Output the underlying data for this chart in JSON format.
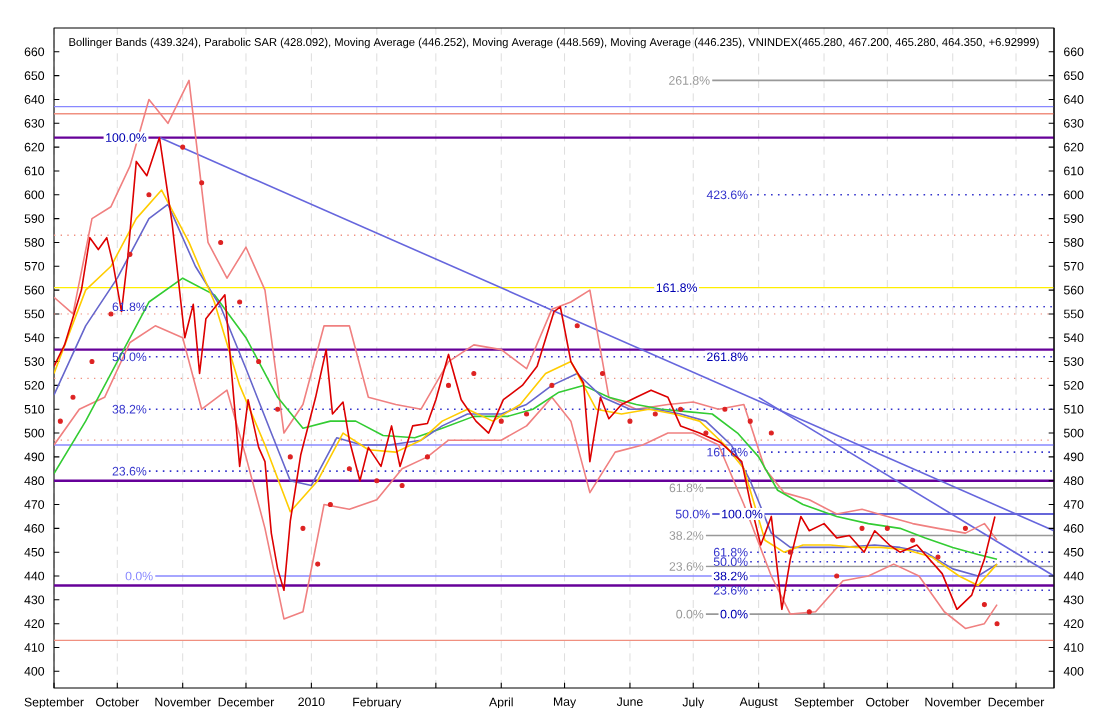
{
  "chart_data": {
    "type": "line",
    "title": "Bollinger Bands (439.324), Parabolic SAR (428.092), Moving Average (446.252), Moving Average (448.569), Moving Average (446.235), VNINDEX(465.280, 467.200, 465.280, 464.350, +6.92999)",
    "xlim": [
      "2009-09-01",
      "2010-12-19"
    ],
    "ylim": [
      393,
      670
    ],
    "y2lim": [
      393,
      670
    ],
    "xticks": [
      {
        "value": "2009-09-01",
        "label": "September"
      },
      {
        "value": "2009-10-01",
        "label": "October"
      },
      {
        "value": "2009-11-01",
        "label": "November"
      },
      {
        "value": "2009-12-01",
        "label": "December"
      },
      {
        "value": "2010-01-01",
        "label": "2010"
      },
      {
        "value": "2010-02-01",
        "label": "February"
      },
      {
        "value": "2010-03-01",
        "label": null
      },
      {
        "value": "2010-04-01",
        "label": "April"
      },
      {
        "value": "2010-05-01",
        "label": "May"
      },
      {
        "value": "2010-06-01",
        "label": "June"
      },
      {
        "value": "2010-07-01",
        "label": "July"
      },
      {
        "value": "2010-08-01",
        "label": "August"
      },
      {
        "value": "2010-09-01",
        "label": "September"
      },
      {
        "value": "2010-10-01",
        "label": "October"
      },
      {
        "value": "2010-11-01",
        "label": "November"
      },
      {
        "value": "2010-12-01",
        "label": "December"
      }
    ],
    "yticks": [
      400,
      410,
      420,
      430,
      440,
      450,
      460,
      470,
      480,
      490,
      500,
      510,
      520,
      530,
      540,
      550,
      560,
      570,
      580,
      590,
      600,
      610,
      620,
      630,
      640,
      650,
      660
    ],
    "y2ticks": [
      400,
      410,
      420,
      430,
      440,
      450,
      460,
      470,
      480,
      490,
      500,
      510,
      520,
      530,
      540,
      550,
      560,
      570,
      580,
      590,
      600,
      610,
      620,
      630,
      640,
      650,
      660
    ],
    "grid": "x",
    "ref_lines": [
      {
        "axis": "y",
        "value": 637,
        "color": "#8888ff",
        "line_style": "solid"
      },
      {
        "axis": "y",
        "value": 634,
        "color": "#f09080",
        "line_style": "solid"
      },
      {
        "axis": "y",
        "value": 624,
        "color": "#660099",
        "line_style": "solid"
      },
      {
        "axis": "y",
        "value": 583,
        "color": "#f09080",
        "line_style": "dotted"
      },
      {
        "axis": "y",
        "value": 561,
        "color": "#ffee00",
        "line_style": "solid"
      },
      {
        "axis": "y",
        "value": 550,
        "color": "#f09080",
        "line_style": "dotted"
      },
      {
        "axis": "y",
        "value": 535,
        "color": "#660099",
        "line_style": "solid"
      },
      {
        "axis": "y",
        "value": 523,
        "color": "#f09080",
        "line_style": "dotted"
      },
      {
        "axis": "y",
        "value": 497,
        "color": "#f09080",
        "line_style": "dotted"
      },
      {
        "axis": "y",
        "value": 495,
        "color": "#8888ff",
        "line_style": "solid"
      },
      {
        "axis": "y",
        "value": 480,
        "color": "#660099",
        "line_style": "solid"
      },
      {
        "axis": "y",
        "value": 436,
        "color": "#660099",
        "line_style": "solid"
      },
      {
        "axis": "y",
        "value": 413,
        "color": "#f09080",
        "line_style": "solid"
      }
    ],
    "annotations": [
      {
        "text": "100.0%",
        "x": "2009-10-16",
        "y": 624
      },
      {
        "text": "161.8%",
        "x": "2010-07-04",
        "y": 561
      },
      {
        "text": "261.8%",
        "x": "2010-07-28",
        "y": 532
      },
      {
        "text": "100.0%",
        "x": "2010-08-04",
        "y": 466
      },
      {
        "text": "38.2%",
        "x": "2010-07-28",
        "y": 440
      },
      {
        "text": "0.0%",
        "x": "2010-07-28",
        "y": 424
      }
    ],
    "series": [
      {
        "name": "61.8%",
        "color": "#3333cc",
        "line_style": "dotted",
        "x": [
          "2009-10-16",
          "2010-12-19"
        ],
        "values": [
          553,
          553
        ]
      },
      {
        "name": "50.0%",
        "color": "#3333cc",
        "line_style": "dotted",
        "x": [
          "2009-10-16",
          "2010-12-19"
        ],
        "values": [
          532,
          532
        ]
      },
      {
        "name": "38.2%",
        "color": "#3333cc",
        "line_style": "dotted",
        "x": [
          "2009-10-16",
          "2010-12-19"
        ],
        "values": [
          510,
          510
        ]
      },
      {
        "name": "23.6%",
        "color": "#3333cc",
        "line_style": "dotted",
        "x": [
          "2009-10-16",
          "2010-12-19"
        ],
        "values": [
          484,
          484
        ]
      },
      {
        "name": "0.0%",
        "color": "#8888ff",
        "line_style": "solid",
        "x": [
          "2009-10-19",
          "2010-12-19"
        ],
        "values": [
          440,
          440
        ]
      },
      {
        "name": "423.6%",
        "color": "#3333cc",
        "line_style": "dotted",
        "x": [
          "2010-07-28",
          "2010-12-19"
        ],
        "values": [
          600,
          600
        ]
      },
      {
        "name": "161.8%",
        "color": "#3333cc",
        "line_style": "dotted",
        "x": [
          "2010-07-28",
          "2010-12-19"
        ],
        "values": [
          492,
          492
        ]
      },
      {
        "name": "50.0%",
        "color": "#3333cc",
        "line_style": "solid",
        "x": [
          "2010-07-10",
          "2010-12-19"
        ],
        "values": [
          466,
          466
        ]
      },
      {
        "name": "61.8%",
        "color": "#3333cc",
        "line_style": "dotted",
        "x": [
          "2010-07-28",
          "2010-12-19"
        ],
        "values": [
          450,
          450
        ]
      },
      {
        "name": "50.0%",
        "color": "#3333cc",
        "line_style": "dotted",
        "x": [
          "2010-07-28",
          "2010-12-19"
        ],
        "values": [
          446,
          446
        ]
      },
      {
        "name": "23.6%",
        "color": "#3333cc",
        "line_style": "dotted",
        "x": [
          "2010-07-28",
          "2010-12-19"
        ],
        "values": [
          434,
          434
        ]
      },
      {
        "name": "261.8%",
        "color": "#999999",
        "line_style": "solid",
        "x": [
          "2010-07-10",
          "2010-12-19"
        ],
        "values": [
          648,
          648
        ]
      },
      {
        "name": "61.8%",
        "color": "#999999",
        "line_style": "solid",
        "x": [
          "2010-07-07",
          "2010-12-19"
        ],
        "values": [
          477,
          477
        ]
      },
      {
        "name": "38.2%",
        "color": "#999999",
        "line_style": "solid",
        "x": [
          "2010-07-07",
          "2010-12-19"
        ],
        "values": [
          457,
          457
        ]
      },
      {
        "name": "23.6%",
        "color": "#999999",
        "line_style": "solid",
        "x": [
          "2010-07-07",
          "2010-12-19"
        ],
        "values": [
          444,
          444
        ]
      },
      {
        "name": "0.0%",
        "color": "#999999",
        "line_style": "solid",
        "x": [
          "2010-07-07",
          "2010-12-19"
        ],
        "values": [
          424,
          424
        ]
      },
      {
        "color": "#6666dd",
        "line_style": "solid",
        "x": [
          "2009-10-21",
          "2010-12-19"
        ],
        "values": [
          624,
          459
        ]
      },
      {
        "color": "#6666dd",
        "line_style": "solid",
        "x": [
          "2010-08-01",
          "2010-12-19"
        ],
        "values": [
          515,
          440
        ]
      },
      {
        "color": "#f08080",
        "line_style": "solid",
        "x": [
          "2009-09-01",
          "2009-09-10",
          "2009-09-19",
          "2009-09-28",
          "2009-10-07",
          "2009-10-16",
          "2009-10-25",
          "2009-11-04",
          "2009-11-13",
          "2009-11-22",
          "2009-12-01",
          "2009-12-10",
          "2009-12-19",
          "2009-12-28",
          "2010-01-07",
          "2010-01-19",
          "2010-01-28",
          "2010-02-10",
          "2010-02-22",
          "2010-03-07",
          "2010-03-19",
          "2010-04-01",
          "2010-04-13",
          "2010-04-25",
          "2010-05-04",
          "2010-05-13",
          "2010-05-22",
          "2010-06-04",
          "2010-06-19",
          "2010-07-01",
          "2010-07-13",
          "2010-07-25",
          "2010-08-04",
          "2010-08-13",
          "2010-08-25",
          "2010-09-07",
          "2010-09-19",
          "2010-10-01",
          "2010-10-13",
          "2010-10-25",
          "2010-11-07",
          "2010-11-16",
          "2010-11-22"
        ],
        "values": [
          557,
          550,
          590,
          595,
          612,
          640,
          630,
          648,
          580,
          565,
          578,
          560,
          500,
          512,
          545,
          545,
          515,
          512,
          510,
          530,
          537,
          535,
          527,
          552,
          555,
          560,
          515,
          510,
          512,
          513,
          510,
          512,
          485,
          475,
          472,
          466,
          468,
          465,
          462,
          460,
          458,
          462,
          455
        ]
      },
      {
        "color": "#f08080",
        "line_style": "solid",
        "x": [
          "2009-09-01",
          "2009-09-13",
          "2009-09-25",
          "2009-10-07",
          "2009-10-19",
          "2009-11-01",
          "2009-11-10",
          "2009-11-22",
          "2009-12-01",
          "2009-12-10",
          "2009-12-19",
          "2009-12-28",
          "2010-01-07",
          "2010-01-19",
          "2010-02-01",
          "2010-02-13",
          "2010-02-25",
          "2010-03-07",
          "2010-03-19",
          "2010-04-01",
          "2010-04-13",
          "2010-04-25",
          "2010-05-04",
          "2010-05-13",
          "2010-05-25",
          "2010-06-07",
          "2010-06-19",
          "2010-07-01",
          "2010-07-13",
          "2010-07-25",
          "2010-08-07",
          "2010-08-16",
          "2010-08-28",
          "2010-09-10",
          "2010-09-22",
          "2010-10-04",
          "2010-10-16",
          "2010-10-28",
          "2010-11-07",
          "2010-11-16",
          "2010-11-22"
        ],
        "values": [
          495,
          510,
          515,
          538,
          545,
          540,
          510,
          518,
          490,
          460,
          422,
          425,
          470,
          468,
          472,
          485,
          490,
          497,
          497,
          497,
          503,
          515,
          505,
          475,
          492,
          495,
          500,
          500,
          495,
          470,
          440,
          424,
          425,
          438,
          440,
          445,
          440,
          425,
          418,
          420,
          428
        ]
      },
      {
        "color": "#33cc33",
        "line_style": "solid",
        "x": [
          "2009-09-01",
          "2009-09-16",
          "2009-10-01",
          "2009-10-16",
          "2009-11-01",
          "2009-11-16",
          "2009-12-01",
          "2009-12-16",
          "2009-12-28",
          "2010-01-10",
          "2010-01-22",
          "2010-02-04",
          "2010-02-19",
          "2010-03-04",
          "2010-03-19",
          "2010-04-04",
          "2010-04-16",
          "2010-04-28",
          "2010-05-10",
          "2010-05-22",
          "2010-06-04",
          "2010-06-16",
          "2010-06-28",
          "2010-07-10",
          "2010-07-22",
          "2010-08-01",
          "2010-08-10",
          "2010-08-22",
          "2010-09-07",
          "2010-09-22",
          "2010-10-07",
          "2010-10-19",
          "2010-11-01",
          "2010-11-13",
          "2010-11-22"
        ],
        "values": [
          483,
          505,
          530,
          555,
          565,
          558,
          540,
          515,
          502,
          505,
          505,
          499,
          498,
          502,
          507,
          507,
          510,
          517,
          520,
          515,
          512,
          510,
          509,
          508,
          500,
          490,
          476,
          470,
          465,
          462,
          460,
          456,
          452,
          449,
          447
        ]
      },
      {
        "color": "#6666cc",
        "line_style": "solid",
        "x": [
          "2009-09-01",
          "2009-09-16",
          "2009-10-01",
          "2009-10-16",
          "2009-10-25",
          "2009-11-07",
          "2009-11-19",
          "2009-12-01",
          "2009-12-13",
          "2009-12-22",
          "2010-01-01",
          "2010-01-13",
          "2010-01-25",
          "2010-02-07",
          "2010-02-22",
          "2010-03-04",
          "2010-03-16",
          "2010-04-01",
          "2010-04-13",
          "2010-04-25",
          "2010-05-07",
          "2010-05-19",
          "2010-06-01",
          "2010-06-13",
          "2010-06-25",
          "2010-07-07",
          "2010-07-19",
          "2010-07-28",
          "2010-08-07",
          "2010-08-16",
          "2010-08-28",
          "2010-09-10",
          "2010-09-25",
          "2010-10-07",
          "2010-10-19",
          "2010-11-01",
          "2010-11-13",
          "2010-11-22"
        ],
        "values": [
          516,
          545,
          565,
          590,
          596,
          570,
          553,
          527,
          500,
          480,
          478,
          498,
          495,
          495,
          497,
          503,
          508,
          508,
          512,
          520,
          525,
          515,
          510,
          510,
          508,
          505,
          495,
          480,
          458,
          452,
          452,
          452,
          453,
          452,
          450,
          443,
          440,
          445
        ]
      },
      {
        "color": "#ffcc00",
        "line_style": "solid",
        "x": [
          "2009-09-01",
          "2009-09-16",
          "2009-09-28",
          "2009-10-10",
          "2009-10-22",
          "2009-11-04",
          "2009-11-16",
          "2009-11-28",
          "2009-12-10",
          "2009-12-22",
          "2010-01-04",
          "2010-01-16",
          "2010-01-28",
          "2010-02-10",
          "2010-02-22",
          "2010-03-04",
          "2010-03-16",
          "2010-03-28",
          "2010-04-10",
          "2010-04-22",
          "2010-05-04",
          "2010-05-16",
          "2010-05-28",
          "2010-06-10",
          "2010-06-22",
          "2010-07-04",
          "2010-07-16",
          "2010-07-25",
          "2010-08-04",
          "2010-08-13",
          "2010-08-22",
          "2010-09-04",
          "2010-09-16",
          "2010-09-28",
          "2010-10-10",
          "2010-10-22",
          "2010-11-04",
          "2010-11-13",
          "2010-11-22"
        ],
        "values": [
          525,
          560,
          570,
          590,
          602,
          580,
          555,
          520,
          495,
          467,
          480,
          500,
          493,
          492,
          497,
          505,
          510,
          505,
          512,
          525,
          530,
          510,
          508,
          510,
          508,
          505,
          495,
          485,
          455,
          450,
          453,
          453,
          452,
          452,
          451,
          448,
          440,
          436,
          445
        ]
      },
      {
        "color": "#dd0000",
        "line_style": "solid",
        "x": [
          "2009-09-01",
          "2009-09-06",
          "2009-09-14",
          "2009-09-18",
          "2009-09-22",
          "2009-09-26",
          "2009-09-29",
          "2009-10-03",
          "2009-10-06",
          "2009-10-10",
          "2009-10-15",
          "2009-10-21",
          "2009-10-27",
          "2009-11-02",
          "2009-11-06",
          "2009-11-09",
          "2009-11-12",
          "2009-11-21",
          "2009-11-28",
          "2009-12-02",
          "2009-12-07",
          "2009-12-10",
          "2009-12-13",
          "2009-12-16",
          "2009-12-19",
          "2009-12-22",
          "2009-12-27",
          "2010-01-03",
          "2010-01-08",
          "2010-01-11",
          "2010-01-16",
          "2010-01-19",
          "2010-01-24",
          "2010-01-28",
          "2010-02-03",
          "2010-02-08",
          "2010-02-12",
          "2010-02-18",
          "2010-02-25",
          "2010-03-01",
          "2010-03-07",
          "2010-03-13",
          "2010-03-20",
          "2010-03-26",
          "2010-04-02",
          "2010-04-11",
          "2010-04-18",
          "2010-04-26",
          "2010-04-29",
          "2010-05-04",
          "2010-05-10",
          "2010-05-13",
          "2010-05-18",
          "2010-05-22",
          "2010-05-28",
          "2010-06-04",
          "2010-06-11",
          "2010-06-19",
          "2010-06-25",
          "2010-07-04",
          "2010-07-14",
          "2010-07-24",
          "2010-07-28",
          "2010-08-02",
          "2010-08-07",
          "2010-08-12",
          "2010-08-16",
          "2010-08-21",
          "2010-08-25",
          "2010-09-01",
          "2010-09-07",
          "2010-09-13",
          "2010-09-20",
          "2010-09-25",
          "2010-10-02",
          "2010-10-07",
          "2010-10-15",
          "2010-10-21",
          "2010-10-27",
          "2010-11-03",
          "2010-11-10",
          "2010-11-16",
          "2010-11-21"
        ],
        "values": [
          528,
          537,
          560,
          582,
          577,
          582,
          571,
          551,
          574,
          614,
          608,
          624,
          588,
          540,
          554,
          525,
          548,
          558,
          486,
          514,
          494,
          488,
          458,
          443,
          434,
          463,
          491,
          515,
          535,
          508,
          513,
          497,
          480,
          494,
          486,
          503,
          486,
          503,
          504,
          514,
          533,
          514,
          505,
          500,
          514,
          520,
          528,
          551,
          553,
          530,
          521,
          488,
          515,
          506,
          512,
          515,
          518,
          515,
          503,
          500,
          496,
          488,
          471,
          453,
          465,
          426,
          447,
          465,
          459,
          462,
          456,
          457,
          450,
          459,
          453,
          450,
          453,
          447,
          441,
          426,
          432,
          447,
          465
        ]
      },
      {
        "type": "scatter",
        "color": "#dd2222",
        "x": [
          "2009-09-04",
          "2009-09-10",
          "2009-09-19",
          "2009-09-28",
          "2009-10-07",
          "2009-10-16",
          "2009-11-01",
          "2009-11-10",
          "2009-11-19",
          "2009-11-28",
          "2009-12-07",
          "2009-12-16",
          "2009-12-22",
          "2009-12-28",
          "2010-01-04",
          "2010-01-10",
          "2010-01-19",
          "2010-02-01",
          "2010-02-13",
          "2010-02-25",
          "2010-03-07",
          "2010-03-19",
          "2010-04-01",
          "2010-04-13",
          "2010-04-25",
          "2010-05-07",
          "2010-05-19",
          "2010-06-01",
          "2010-06-13",
          "2010-06-25",
          "2010-07-07",
          "2010-07-16",
          "2010-07-28",
          "2010-08-07",
          "2010-08-16",
          "2010-08-25",
          "2010-09-07",
          "2010-09-19",
          "2010-10-01",
          "2010-10-13",
          "2010-10-25",
          "2010-11-07",
          "2010-11-16",
          "2010-11-22"
        ],
        "values": [
          505,
          515,
          530,
          550,
          575,
          600,
          620,
          605,
          580,
          555,
          530,
          510,
          490,
          460,
          445,
          470,
          485,
          480,
          478,
          490,
          520,
          525,
          505,
          508,
          520,
          545,
          525,
          505,
          508,
          510,
          500,
          510,
          505,
          500,
          450,
          425,
          440,
          460,
          460,
          455,
          448,
          460,
          428,
          420
        ]
      }
    ]
  }
}
